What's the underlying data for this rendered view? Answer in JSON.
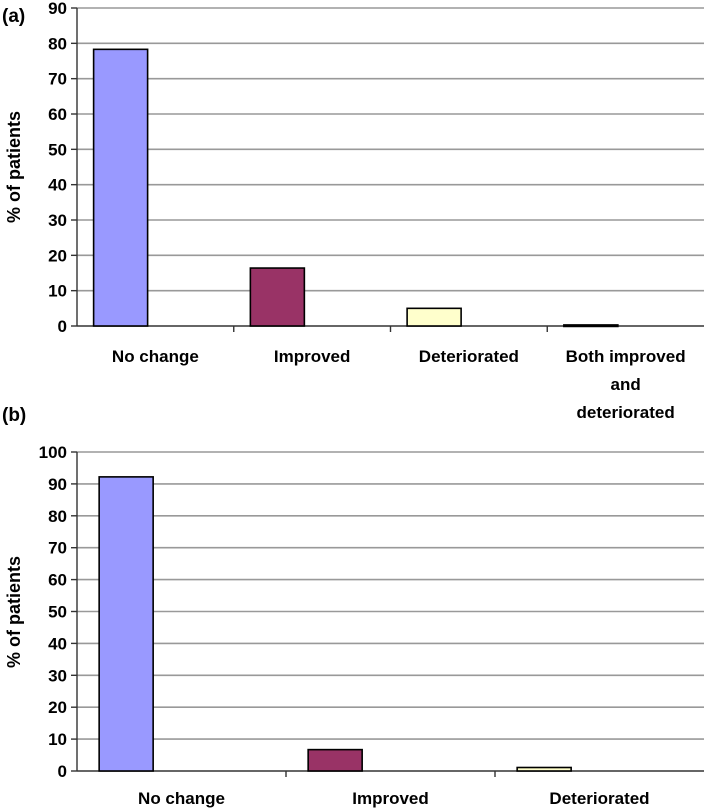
{
  "chart_data": [
    {
      "panel_label": "(a)",
      "type": "bar",
      "categories": [
        "No change",
        "Improved",
        "Deteriorated",
        "Both improved and deteriorated"
      ],
      "category_lines": [
        [
          "No change"
        ],
        [
          "Improved"
        ],
        [
          "Deteriorated"
        ],
        [
          "Both improved",
          "and",
          "deteriorated"
        ]
      ],
      "values": [
        78.3,
        16.4,
        5.0,
        0.3
      ],
      "colors": [
        "#9999ff",
        "#993366",
        "#ffffcc",
        "#ffffcc"
      ],
      "ylabel": "% of patients",
      "ylim": [
        0,
        90
      ],
      "yticks": [
        0,
        10,
        20,
        30,
        40,
        50,
        60,
        70,
        80,
        90
      ],
      "grid": true
    },
    {
      "panel_label": "(b)",
      "type": "bar",
      "categories": [
        "No change",
        "Improved",
        "Deteriorated"
      ],
      "category_lines": [
        [
          "No change"
        ],
        [
          "Improved"
        ],
        [
          "Deteriorated"
        ]
      ],
      "values": [
        92.2,
        6.7,
        1.1
      ],
      "colors": [
        "#9999ff",
        "#993366",
        "#ffffcc"
      ],
      "ylabel": "% of patients",
      "ylim": [
        0,
        100
      ],
      "yticks": [
        0,
        10,
        20,
        30,
        40,
        50,
        60,
        70,
        80,
        90,
        100
      ],
      "grid": true
    }
  ]
}
